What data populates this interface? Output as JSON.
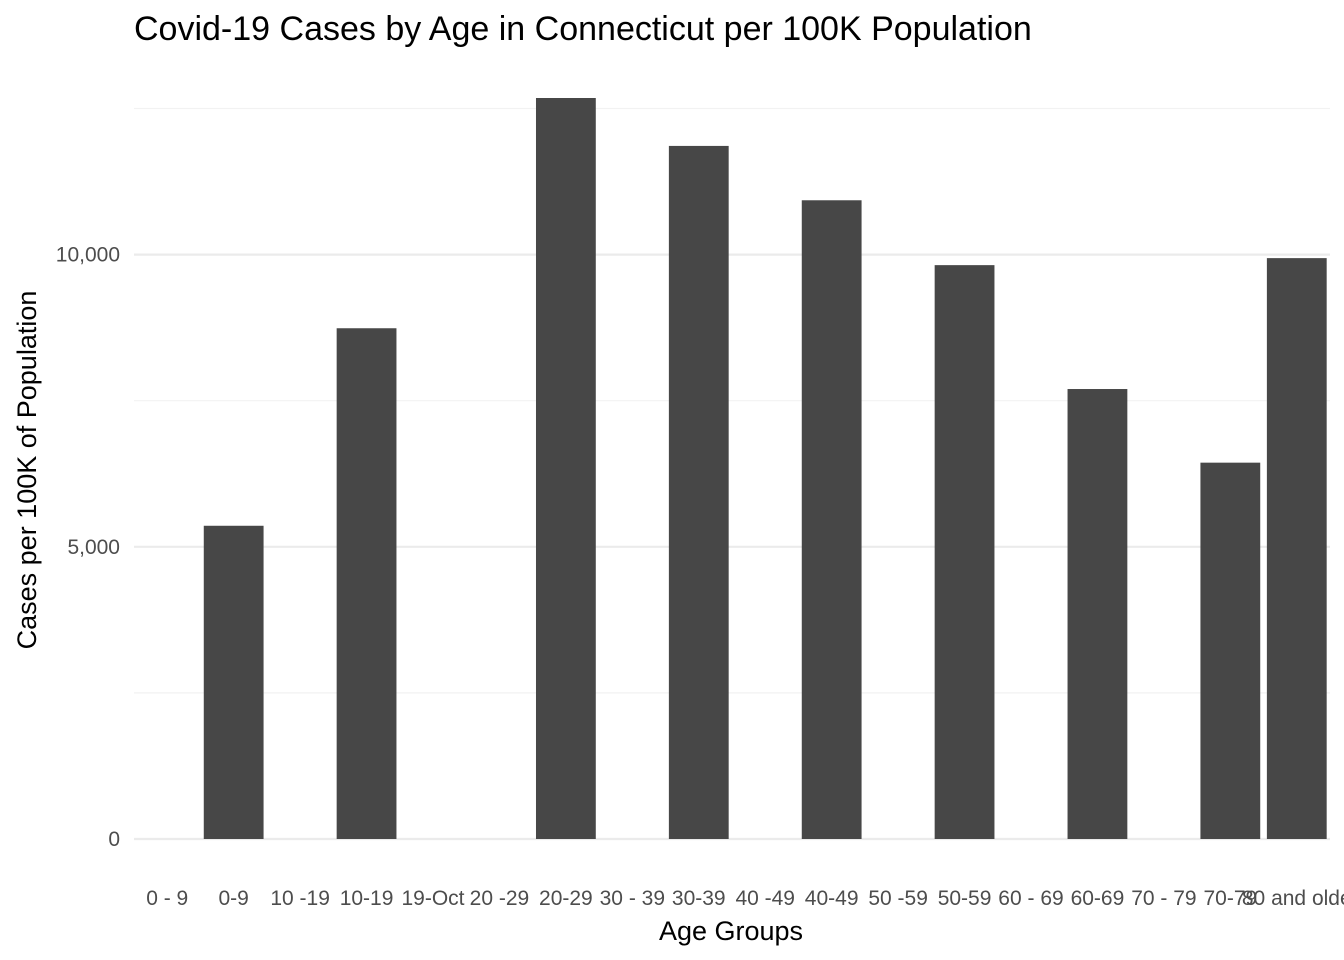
{
  "chart_data": {
    "type": "bar",
    "title": "Covid-19 Cases by Age in Connecticut per 100K Population",
    "xlabel": "Age Groups",
    "ylabel": "Cases per 100K of Population",
    "categories": [
      "0 - 9",
      "0-9",
      "10 -19",
      "10-19",
      "19-Oct",
      "20 -29",
      "20-29",
      "30 - 39",
      "30-39",
      "40 -49",
      "40-49",
      "50 -59",
      "50-59",
      "60 - 69",
      "60-69",
      "70 - 79",
      "70-79",
      "80 and olde"
    ],
    "values": [
      0,
      5360,
      0,
      8740,
      0,
      0,
      12680,
      0,
      11860,
      0,
      10930,
      0,
      9820,
      0,
      7700,
      0,
      6440,
      9940
    ],
    "ylim": [
      0,
      12680
    ],
    "yticks": [
      0,
      5000,
      10000
    ],
    "ytick_labels": [
      "0",
      "5,000",
      "10,000"
    ],
    "grid": true,
    "colors": {
      "bar": "#474747",
      "grid": "#ebebeb",
      "background": "#ffffff"
    }
  }
}
